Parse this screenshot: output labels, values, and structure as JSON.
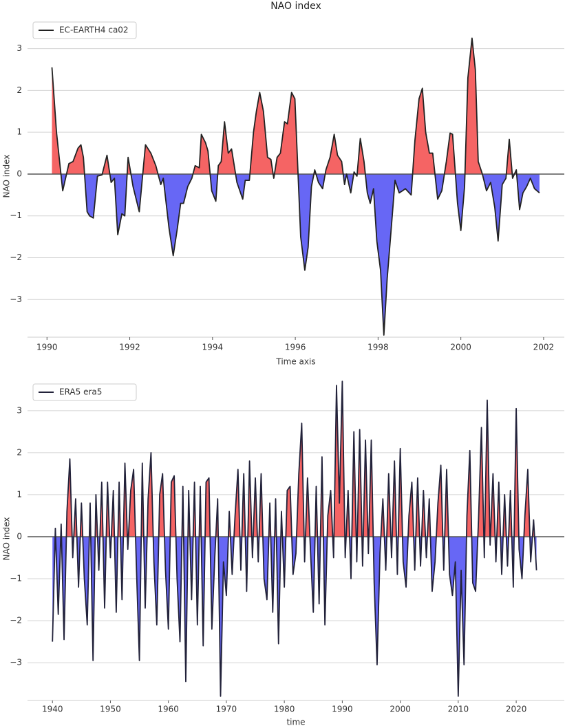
{
  "chart_data": [
    {
      "type": "line",
      "title": "NAO index",
      "xlabel": "Time axis",
      "ylabel": "NAO index",
      "fill_between": true,
      "fill_colors": {
        "positive": "#f56464",
        "negative": "#6767f5"
      },
      "grid": true,
      "legend": "upper left",
      "xlim": [
        1989.53,
        2002.5
      ],
      "ylim": [
        -3.9,
        3.8
      ],
      "xticks": [
        1990,
        1992,
        1994,
        1996,
        1998,
        2000,
        2002
      ],
      "yticks": [
        {
          "value": -3,
          "label": "−3"
        },
        {
          "value": -2,
          "label": "−2"
        },
        {
          "value": -1,
          "label": "−1"
        },
        0,
        1,
        2,
        3
      ],
      "x": [
        1990.12,
        1990.23,
        1990.38,
        1990.53,
        1990.63,
        1990.75,
        1990.82,
        1990.88,
        1990.97,
        1991.03,
        1991.12,
        1991.22,
        1991.33,
        1991.45,
        1991.55,
        1991.63,
        1991.71,
        1991.81,
        1991.88,
        1991.96,
        1992.08,
        1992.23,
        1992.38,
        1992.51,
        1992.63,
        1992.75,
        1992.81,
        1992.95,
        1993.05,
        1993.15,
        1993.23,
        1993.3,
        1993.4,
        1993.5,
        1993.58,
        1993.68,
        1993.73,
        1993.83,
        1993.89,
        1993.98,
        1994.08,
        1994.14,
        1994.21,
        1994.29,
        1994.38,
        1994.46,
        1994.59,
        1994.73,
        1994.79,
        1994.89,
        1994.99,
        1995.06,
        1995.14,
        1995.23,
        1995.33,
        1995.41,
        1995.48,
        1995.56,
        1995.64,
        1995.74,
        1995.81,
        1995.91,
        1995.99,
        1996.13,
        1996.23,
        1996.31,
        1996.39,
        1996.47,
        1996.56,
        1996.66,
        1996.74,
        1996.84,
        1996.94,
        1997.02,
        1997.12,
        1997.19,
        1997.24,
        1997.34,
        1997.42,
        1997.49,
        1997.57,
        1997.66,
        1997.74,
        1997.81,
        1997.89,
        1997.97,
        1998.06,
        1998.14,
        1998.22,
        1998.31,
        1998.41,
        1998.51,
        1998.59,
        1998.66,
        1998.8,
        1998.89,
        1998.99,
        1999.07,
        1999.15,
        1999.24,
        1999.32,
        1999.44,
        1999.54,
        1999.65,
        1999.74,
        1999.8,
        1999.92,
        2000.0,
        2000.09,
        2000.17,
        2000.27,
        2000.35,
        2000.42,
        2000.52,
        2000.62,
        2000.72,
        2000.82,
        2000.9,
        2001.0,
        2001.09,
        2001.17,
        2001.25,
        2001.34,
        2001.42,
        2001.5,
        2001.59,
        2001.68,
        2001.78,
        2001.9
      ],
      "series": [
        {
          "name": "EC-EARTH4 ca02",
          "color": "#222222",
          "values": [
            2.55,
            1.0,
            -0.4,
            0.25,
            0.3,
            0.62,
            0.7,
            0.4,
            -0.9,
            -1.0,
            -1.05,
            -0.05,
            -0.02,
            0.45,
            -0.2,
            -0.1,
            -1.45,
            -0.95,
            -1.0,
            0.4,
            -0.3,
            -0.9,
            0.7,
            0.5,
            0.2,
            -0.25,
            -0.1,
            -1.3,
            -1.95,
            -1.3,
            -0.7,
            -0.7,
            -0.3,
            -0.1,
            0.2,
            0.15,
            0.95,
            0.75,
            0.55,
            -0.4,
            -0.65,
            0.2,
            0.3,
            1.25,
            0.5,
            0.6,
            -0.2,
            -0.6,
            -0.15,
            -0.15,
            1.0,
            1.5,
            1.95,
            1.5,
            0.4,
            0.35,
            -0.1,
            0.4,
            0.5,
            1.25,
            1.2,
            1.95,
            1.8,
            -1.5,
            -2.3,
            -1.75,
            -0.3,
            0.1,
            -0.2,
            -0.35,
            0.1,
            0.4,
            0.95,
            0.45,
            0.3,
            -0.25,
            0,
            -0.45,
            0.05,
            -0.05,
            0.85,
            0.3,
            -0.45,
            -0.7,
            -0.35,
            -1.6,
            -2.3,
            -3.85,
            -2.5,
            -1.4,
            -0.15,
            -0.45,
            -0.4,
            -0.35,
            -0.5,
            0.8,
            1.8,
            2.05,
            1.0,
            0.5,
            0.5,
            -0.6,
            -0.4,
            0.3,
            0.98,
            0.95,
            -0.7,
            -1.35,
            -0.3,
            2.3,
            3.25,
            2.5,
            0.3,
            0,
            -0.4,
            -0.2,
            -0.8,
            -1.6,
            -0.25,
            -0.1,
            0.83,
            -0.1,
            0.1,
            -0.85,
            -0.45,
            -0.3,
            -0.1,
            -0.35,
            -0.45
          ]
        }
      ]
    },
    {
      "type": "line",
      "xlabel": "time",
      "ylabel": "NAO index",
      "fill_between": true,
      "fill_colors": {
        "positive": "#f56464",
        "negative": "#6767f5"
      },
      "grid": true,
      "legend": "upper left",
      "xlim": [
        1935.7,
        2028.3
      ],
      "ylim": [
        -3.9,
        3.8
      ],
      "xticks": [
        1940,
        1950,
        1960,
        1970,
        1980,
        1990,
        2000,
        2010,
        2020
      ],
      "yticks": [
        {
          "value": -3,
          "label": "−3"
        },
        {
          "value": -2,
          "label": "−2"
        },
        {
          "value": -1,
          "label": "−1"
        },
        0,
        1,
        2,
        3
      ],
      "x": [
        1940.0,
        1940.5,
        1941.0,
        1941.5,
        1942.0,
        1942.5,
        1943.0,
        1943.5,
        1944.0,
        1944.5,
        1945.0,
        1945.5,
        1946.0,
        1946.5,
        1947.0,
        1947.5,
        1948.0,
        1948.5,
        1949.0,
        1949.5,
        1950.0,
        1950.5,
        1951.0,
        1951.5,
        1952.0,
        1952.5,
        1953.0,
        1953.5,
        1954.0,
        1954.5,
        1955.0,
        1955.5,
        1956.0,
        1956.5,
        1957.0,
        1957.5,
        1958.0,
        1958.5,
        1959.0,
        1959.5,
        1960.0,
        1960.5,
        1961.0,
        1961.5,
        1962.0,
        1962.5,
        1963.0,
        1963.5,
        1964.0,
        1964.5,
        1965.0,
        1965.5,
        1966.0,
        1966.5,
        1967.0,
        1967.5,
        1968.0,
        1968.5,
        1969.0,
        1969.5,
        1970.0,
        1970.5,
        1971.0,
        1971.5,
        1972.0,
        1972.5,
        1973.0,
        1973.5,
        1974.0,
        1974.5,
        1975.0,
        1975.5,
        1976.0,
        1976.5,
        1977.0,
        1977.5,
        1978.0,
        1978.5,
        1979.0,
        1979.5,
        1980.0,
        1980.5,
        1981.0,
        1981.5,
        1982.0,
        1982.5,
        1983.0,
        1983.5,
        1984.0,
        1984.5,
        1985.0,
        1985.5,
        1986.0,
        1986.5,
        1987.0,
        1987.5,
        1988.0,
        1988.5,
        1989.0,
        1989.5,
        1990.0,
        1990.5,
        1991.0,
        1991.5,
        1992.0,
        1992.5,
        1993.0,
        1993.5,
        1994.0,
        1994.5,
        1995.0,
        1995.5,
        1996.0,
        1996.5,
        1997.0,
        1997.5,
        1998.0,
        1998.5,
        1999.0,
        1999.5,
        2000.0,
        2000.5,
        2001.0,
        2001.5,
        2002.0,
        2002.5,
        2003.0,
        2003.5,
        2004.0,
        2004.5,
        2005.0,
        2005.5,
        2006.0,
        2006.5,
        2007.0,
        2007.5,
        2008.0,
        2008.5,
        2009.0,
        2009.5,
        2010.0,
        2010.5,
        2011.0,
        2011.5,
        2012.0,
        2012.5,
        2013.0,
        2013.5,
        2014.0,
        2014.5,
        2015.0,
        2015.5,
        2016.0,
        2016.5,
        2017.0,
        2017.5,
        2018.0,
        2018.5,
        2019.0,
        2019.5,
        2020.0,
        2020.5,
        2021.0,
        2021.5,
        2022.0,
        2022.5,
        2023.0,
        2023.5
      ],
      "series": [
        {
          "name": "ERA5 era5",
          "color": "#22223a",
          "values": [
            -2.5,
            0.2,
            -1.85,
            0.3,
            -2.45,
            0.6,
            1.85,
            -0.5,
            0.9,
            -1.2,
            0.8,
            -1.0,
            -2.1,
            0.8,
            -2.95,
            1.0,
            -0.8,
            1.3,
            -1.7,
            1.3,
            -0.5,
            1.1,
            -1.8,
            1.3,
            -1.5,
            1.75,
            -0.3,
            1.1,
            1.6,
            -0.8,
            -2.95,
            1.75,
            -1.7,
            0.9,
            2.0,
            -0.6,
            -2.1,
            1.0,
            1.5,
            -0.8,
            -2.2,
            1.3,
            1.45,
            -1.0,
            -2.5,
            1.2,
            -3.45,
            1.1,
            -1.5,
            1.3,
            -2.1,
            1.2,
            -2.6,
            1.3,
            1.4,
            -2.2,
            -0.5,
            0.9,
            -3.8,
            -0.6,
            -1.4,
            0.6,
            -0.9,
            0.5,
            1.6,
            -0.8,
            1.5,
            -1.3,
            1.8,
            -0.5,
            1.4,
            -0.6,
            1.5,
            -1.0,
            -1.5,
            0.8,
            -1.8,
            0.9,
            -2.55,
            0.6,
            -1.2,
            1.1,
            1.2,
            -0.9,
            -0.4,
            1.5,
            2.7,
            -0.6,
            1.4,
            -0.3,
            -1.8,
            1.2,
            -1.6,
            1.9,
            -2.1,
            0.5,
            1.1,
            -0.5,
            3.6,
            0.8,
            3.7,
            -0.5,
            1.1,
            -1.0,
            2.5,
            -0.6,
            2.55,
            -0.7,
            2.3,
            -0.4,
            2.3,
            -1.1,
            -3.05,
            -0.4,
            0.9,
            -0.8,
            1.5,
            -0.5,
            1.8,
            -0.9,
            2.1,
            -0.6,
            -1.2,
            0.5,
            1.3,
            -0.8,
            1.4,
            -0.7,
            1.1,
            -0.5,
            0.9,
            -1.3,
            -0.6,
            0.8,
            1.7,
            -0.8,
            1.6,
            -0.9,
            -1.4,
            -0.6,
            -3.8,
            -0.8,
            -3.05,
            0.5,
            2.05,
            -1.1,
            -1.3,
            0.4,
            2.6,
            -0.5,
            3.25,
            -0.2,
            1.5,
            -0.6,
            1.3,
            -0.9,
            1.0,
            -0.7,
            1.1,
            -1.2,
            3.05,
            -0.3,
            -1.0,
            0.5,
            1.6,
            -0.6,
            0.4,
            -0.8
          ]
        }
      ]
    }
  ]
}
